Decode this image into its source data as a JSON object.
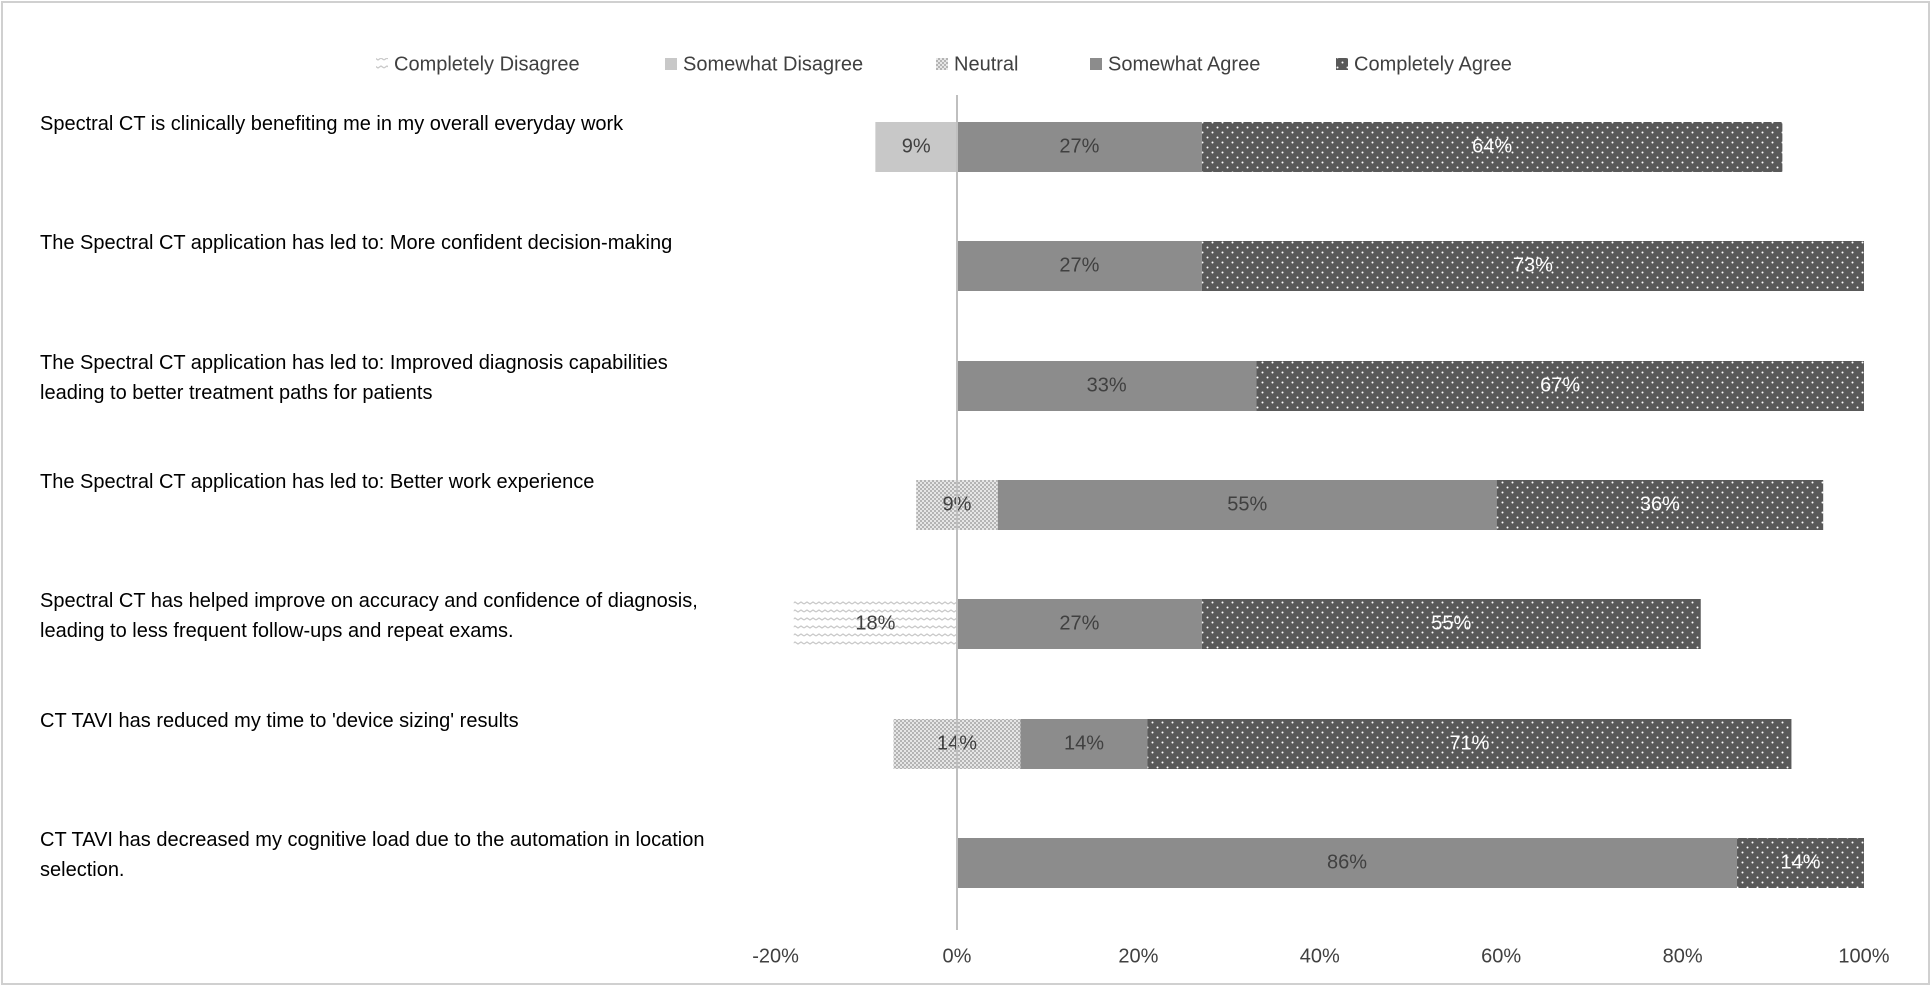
{
  "chart_data": {
    "type": "diverging-stacked-bar",
    "categories": [
      "Spectral CT is clinically benefiting me in my overall everyday work",
      "The Spectral CT application has led to: More confident decision-making",
      "The Spectral CT application has led to: Improved diagnosis capabilities leading to better treatment paths for patients",
      "The Spectral CT application has led to: Better work experience",
      "Spectral CT has helped improve on accuracy and confidence of diagnosis, leading to less frequent follow-ups and repeat exams.",
      "CT TAVI has reduced my time to 'device sizing' results",
      "CT TAVI has decreased my cognitive load due to the automation in location selection."
    ],
    "series": [
      {
        "name": "Completely Disagree",
        "color": "#c8c8c8",
        "values": [
          null,
          null,
          null,
          null,
          18,
          null,
          null
        ],
        "value_labels": [
          null,
          null,
          null,
          null,
          "18%",
          null,
          null
        ]
      },
      {
        "name": "Somewhat Disagree",
        "color": "#c8c8c8",
        "values": [
          9,
          null,
          null,
          null,
          null,
          null,
          null
        ],
        "value_labels": [
          "9%",
          null,
          null,
          null,
          null,
          null,
          null
        ]
      },
      {
        "name": "Neutral",
        "color": "#b4b4b4",
        "values": [
          null,
          null,
          null,
          9,
          null,
          14,
          null
        ],
        "value_labels": [
          null,
          null,
          null,
          "9%",
          null,
          "14%",
          null
        ]
      },
      {
        "name": "Somewhat Agree",
        "color": "#8c8c8c",
        "values": [
          27,
          27,
          33,
          55,
          27,
          14,
          86
        ],
        "value_labels": [
          "27%",
          "27%",
          "33%",
          "55%",
          "27%",
          "14%",
          "86%"
        ]
      },
      {
        "name": "Completely Agree",
        "color": "#595959",
        "values": [
          64,
          73,
          67,
          36,
          55,
          71,
          14
        ],
        "value_labels": [
          "64%",
          "73%",
          "67%",
          "36%",
          "55%",
          "71%",
          "14%"
        ]
      }
    ],
    "xlim": [
      -20,
      100
    ],
    "xticks": [
      {
        "value": -20,
        "label": "-20%"
      },
      {
        "value": 0,
        "label": "0%"
      },
      {
        "value": 20,
        "label": "20%"
      },
      {
        "value": 40,
        "label": "40%"
      },
      {
        "value": 60,
        "label": "60%"
      },
      {
        "value": 80,
        "label": "80%"
      },
      {
        "value": 100,
        "label": "100%"
      }
    ],
    "legend": "top"
  }
}
